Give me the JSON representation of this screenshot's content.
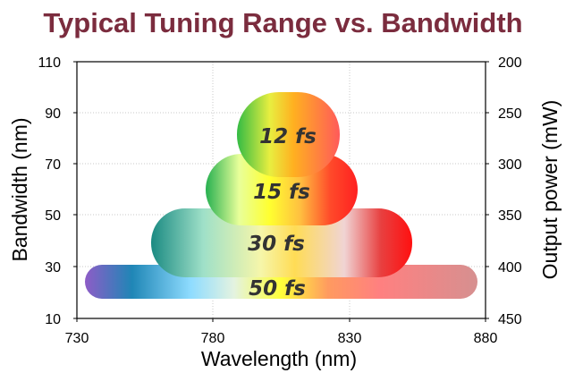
{
  "chart_data": {
    "type": "range-bar",
    "title": "Typical Tuning Range vs. Bandwidth",
    "xlabel": "Wavelength (nm)",
    "ylabel_left": "Bandwidth (nm)",
    "ylabel_right": "Output power (mW)",
    "xlim": [
      730,
      880
    ],
    "ylim_left": [
      10,
      110
    ],
    "ylim_right": [
      450,
      200
    ],
    "x_ticks": [
      "730",
      "780",
      "830",
      "880"
    ],
    "y_left_ticks": [
      "10",
      "30",
      "50",
      "70",
      "90",
      "110"
    ],
    "y_right_ticks": [
      "450",
      "400",
      "350",
      "300",
      "250",
      "200"
    ],
    "grid": true,
    "series": [
      {
        "name": "50 fs",
        "x_start": 733,
        "x_end": 878,
        "y_center": 24,
        "y_height": 13
      },
      {
        "name": "30 fs",
        "x_start": 757,
        "x_end": 855,
        "y_center": 39,
        "y_height": 26
      },
      {
        "name": "15 fs",
        "x_start": 776,
        "x_end": 834,
        "y_center": 60,
        "y_height": 28
      },
      {
        "name": "12 fs",
        "x_start": 788,
        "x_end": 823,
        "y_center": 80,
        "y_height": 27
      }
    ]
  }
}
